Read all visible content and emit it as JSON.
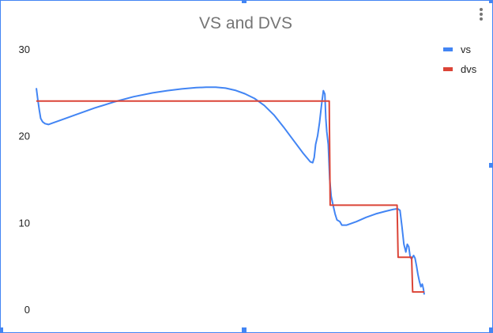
{
  "menu": {
    "icon": "more-vert-icon"
  },
  "chart_data": {
    "type": "line",
    "title": "VS and DVS",
    "xlabel": "",
    "ylabel": "",
    "ylim": [
      0,
      30
    ],
    "yticks": [
      0,
      10,
      20,
      30
    ],
    "grid": false,
    "legend_position": "right",
    "x_axis_labels": false,
    "series": [
      {
        "name": "vs",
        "color": "#4285f4",
        "points": [
          [
            0,
            25.5
          ],
          [
            0.3,
            24.2
          ],
          [
            0.6,
            23.0
          ],
          [
            0.9,
            22.0
          ],
          [
            1.3,
            21.6
          ],
          [
            1.8,
            21.4
          ],
          [
            2.5,
            21.3
          ],
          [
            3.5,
            21.5
          ],
          [
            5,
            21.8
          ],
          [
            8,
            22.4
          ],
          [
            12,
            23.2
          ],
          [
            16,
            23.9
          ],
          [
            20,
            24.5
          ],
          [
            24,
            24.95
          ],
          [
            27,
            25.2
          ],
          [
            30,
            25.4
          ],
          [
            33,
            25.55
          ],
          [
            35,
            25.6
          ],
          [
            37,
            25.6
          ],
          [
            39,
            25.5
          ],
          [
            41,
            25.25
          ],
          [
            43,
            24.85
          ],
          [
            45,
            24.3
          ],
          [
            47,
            23.5
          ],
          [
            49,
            22.4
          ],
          [
            51,
            21.0
          ],
          [
            53,
            19.5
          ],
          [
            55,
            18.0
          ],
          [
            56.5,
            17.0
          ],
          [
            57,
            16.9
          ],
          [
            57.3,
            17.5
          ],
          [
            57.6,
            19.0
          ],
          [
            58,
            20.0
          ],
          [
            58.4,
            21.5
          ],
          [
            58.8,
            23.5
          ],
          [
            59.2,
            25.2
          ],
          [
            59.5,
            24.8
          ],
          [
            59.7,
            22.0
          ],
          [
            59.9,
            20.5
          ],
          [
            60.2,
            19.0
          ],
          [
            60.5,
            15.0
          ],
          [
            60.8,
            13.0
          ],
          [
            61.2,
            12.0
          ],
          [
            61.6,
            11.0
          ],
          [
            62,
            10.3
          ],
          [
            62.6,
            10.1
          ],
          [
            63,
            9.7
          ],
          [
            64,
            9.7
          ],
          [
            66,
            10.1
          ],
          [
            68,
            10.6
          ],
          [
            70,
            11.0
          ],
          [
            72,
            11.3
          ],
          [
            73.5,
            11.5
          ],
          [
            74.5,
            11.6
          ],
          [
            75,
            11.4
          ],
          [
            75.4,
            9.5
          ],
          [
            75.8,
            7.5
          ],
          [
            76.2,
            6.6
          ],
          [
            76.5,
            7.5
          ],
          [
            76.8,
            7.2
          ],
          [
            77.1,
            6.0
          ],
          [
            77.4,
            5.8
          ],
          [
            77.8,
            6.2
          ],
          [
            78.1,
            5.9
          ],
          [
            78.4,
            5.0
          ],
          [
            78.7,
            4.0
          ],
          [
            79.0,
            3.2
          ],
          [
            79.3,
            2.6
          ],
          [
            79.6,
            2.9
          ],
          [
            79.8,
            2.4
          ],
          [
            80,
            1.7
          ]
        ]
      },
      {
        "name": "dvs",
        "color": "#db4437",
        "points": [
          [
            0,
            24
          ],
          [
            60.4,
            24
          ],
          [
            60.6,
            12
          ],
          [
            74.4,
            12
          ],
          [
            74.6,
            6
          ],
          [
            77.4,
            6
          ],
          [
            77.6,
            2
          ],
          [
            80,
            2
          ]
        ]
      }
    ]
  }
}
